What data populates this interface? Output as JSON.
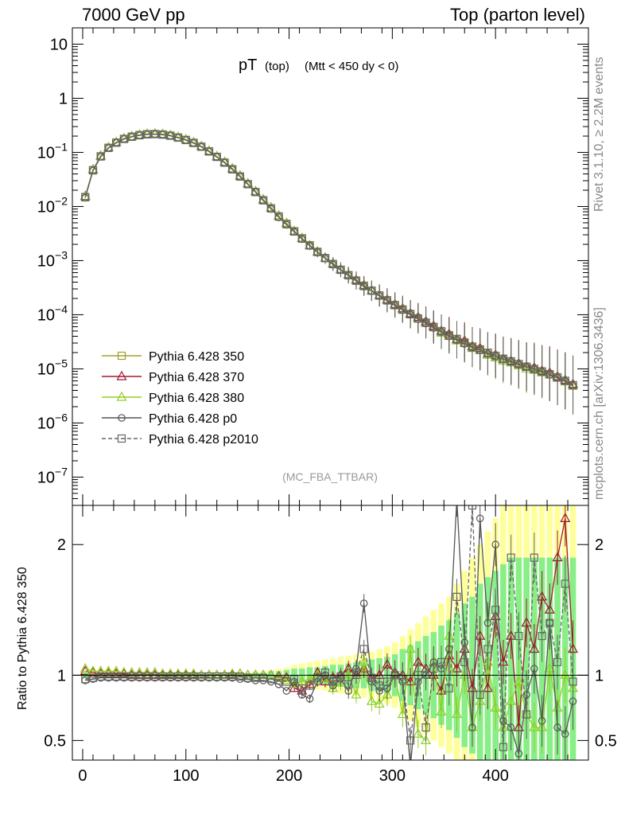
{
  "header": {
    "left": "7000 GeV pp",
    "right": "Top (parton level)"
  },
  "side_labels": {
    "rivet": "Rivet 3.1.10, ≥ 2.2M events",
    "mcplots": "mcplots.cern.ch [arXiv:1306.3436]"
  },
  "plot": {
    "title_main": "pT",
    "title_sub": "(top)",
    "title_cut": "(Mtt < 450 dy < 0)",
    "analysis": "(MC_FBA_TTBAR)",
    "ratio_ylabel": "Ratio to Pythia 6.428 350"
  },
  "chart_data": [
    {
      "type": "line",
      "panel": "main",
      "yscale": "log",
      "ylim": [
        3e-08,
        20
      ],
      "xlim": [
        -10,
        490
      ],
      "yticks": [
        "10",
        "1",
        "10^-1",
        "10^-2",
        "10^-3",
        "10^-4",
        "10^-5",
        "10^-6",
        "10^-7"
      ],
      "legend_position": "bottom-left",
      "x": [
        2.5,
        10,
        17.5,
        25,
        32.5,
        40,
        47.5,
        55,
        62.5,
        70,
        77.5,
        85,
        92.5,
        100,
        107.5,
        115,
        122.5,
        130,
        137.5,
        145,
        152.5,
        160,
        167.5,
        175,
        182.5,
        190,
        197.5,
        205,
        212.5,
        220,
        227.5,
        235,
        242.5,
        250,
        257.5,
        265,
        272.5,
        280,
        287.5,
        295,
        302.5,
        310,
        317.5,
        325,
        332.5,
        340,
        347.5,
        355,
        362.5,
        370,
        377.5,
        385,
        392.5,
        400,
        407.5,
        415,
        422.5,
        430,
        437.5,
        445,
        452.5,
        460,
        467.5,
        475
      ],
      "series": [
        {
          "name": "Pythia 6.428 350",
          "color": "#a0a030",
          "marker": "square",
          "dash": "solid",
          "values": [
            0.015,
            0.047,
            0.085,
            0.122,
            0.152,
            0.178,
            0.196,
            0.209,
            0.217,
            0.219,
            0.215,
            0.205,
            0.189,
            0.171,
            0.151,
            0.128,
            0.105,
            0.083,
            0.065,
            0.049,
            0.036,
            0.026,
            0.0186,
            0.0131,
            0.0093,
            0.0066,
            0.0048,
            0.0035,
            0.0026,
            0.00193,
            0.00146,
            0.00112,
            0.00087,
            0.00068,
            0.00054,
            0.00043,
            0.000345,
            0.00028,
            0.000228,
            0.000186,
            0.000152,
            0.000126,
            0.000104,
            8.6e-05,
            7.2e-05,
            6e-05,
            5e-05,
            4.2e-05,
            3.6e-05,
            3.1e-05,
            2.6e-05,
            2.3e-05,
            2e-05,
            1.75e-05,
            1.55e-05,
            1.38e-05,
            1.23e-05,
            1.1e-05,
            1e-05,
            9e-06,
            8e-06,
            7e-06,
            6e-06,
            5e-06
          ]
        },
        {
          "name": "Pythia 6.428 370",
          "color": "#a01830",
          "marker": "triangle",
          "dash": "solid",
          "values": [
            0.0155,
            0.048,
            0.086,
            0.123,
            0.153,
            0.18,
            0.197,
            0.21,
            0.218,
            0.22,
            0.216,
            0.206,
            0.19,
            0.172,
            0.152,
            0.129,
            0.106,
            0.084,
            0.066,
            0.05,
            0.037,
            0.0265,
            0.019,
            0.0134,
            0.0095,
            0.0067,
            0.0049,
            0.0035,
            0.0026,
            0.0019,
            0.00145,
            0.00112,
            0.00088,
            0.00069,
            0.00055,
            0.00044,
            0.00035,
            0.00028,
            0.00023,
            0.00019,
            0.000155,
            0.00013,
            0.000105,
            9e-05,
            7.5e-05,
            6.2e-05,
            5e-05,
            4.4e-05,
            3.5e-05,
            3.3e-05,
            2.6e-05,
            2.4e-05,
            1.9e-05,
            1.8e-05,
            1.5e-05,
            1.4e-05,
            1.25e-05,
            1.1e-05,
            1.05e-05,
            9.2e-06,
            8.5e-06,
            7.2e-06,
            6.2e-06,
            5.2e-06
          ]
        },
        {
          "name": "Pythia 6.428 380",
          "color": "#8fd020",
          "marker": "triangle",
          "dash": "solid",
          "values": [
            0.0152,
            0.0475,
            0.0855,
            0.1225,
            0.1525,
            0.179,
            0.1965,
            0.2095,
            0.2175,
            0.2195,
            0.2155,
            0.2055,
            0.1895,
            0.1715,
            0.1515,
            0.1285,
            0.1055,
            0.0835,
            0.0655,
            0.0495,
            0.0365,
            0.0262,
            0.0188,
            0.0132,
            0.0094,
            0.00665,
            0.00485,
            0.0035,
            0.0026,
            0.00192,
            0.00146,
            0.00112,
            0.00087,
            0.00068,
            0.00054,
            0.00043,
            0.00034,
            0.00028,
            0.000225,
            0.000185,
            0.00015,
            0.000125,
            0.0001,
            8.5e-05,
            7e-05,
            5.8e-05,
            4.6e-05,
            4e-05,
            3.3e-05,
            3e-05,
            2.4e-05,
            2.2e-05,
            1.8e-05,
            1.6e-05,
            1.4e-05,
            1.3e-05,
            1.15e-05,
            1e-05,
            9.5e-06,
            8.5e-06,
            7.8e-06,
            6.8e-06,
            5.8e-06,
            4.8e-06
          ]
        },
        {
          "name": "Pythia 6.428 p0",
          "color": "#555555",
          "marker": "circle",
          "dash": "solid",
          "values": [
            0.0145,
            0.046,
            0.083,
            0.12,
            0.15,
            0.176,
            0.193,
            0.206,
            0.214,
            0.216,
            0.212,
            0.202,
            0.186,
            0.168,
            0.148,
            0.126,
            0.103,
            0.082,
            0.064,
            0.048,
            0.0355,
            0.0255,
            0.0183,
            0.0128,
            0.009,
            0.0063,
            0.0046,
            0.0034,
            0.0025,
            0.00188,
            0.00143,
            0.0011,
            0.00085,
            0.00067,
            0.00053,
            0.00042,
            0.00033,
            0.000275,
            0.000222,
            0.00018,
            0.000148,
            0.000122,
            0.0001,
            8.3e-05,
            6.9e-05,
            5.7e-05,
            4.8e-05,
            4e-05,
            3.4e-05,
            2.9e-05,
            2.5e-05,
            2.2e-05,
            1.9e-05,
            1.7e-05,
            1.5e-05,
            1.35e-05,
            1.2e-05,
            1.08e-05,
            9.8e-06,
            8.8e-06,
            7.8e-06,
            6.8e-06,
            5.9e-06,
            4.9e-06
          ]
        },
        {
          "name": "Pythia 6.428 p2010",
          "color": "#666666",
          "marker": "square",
          "dash": "dashed",
          "values": [
            0.0148,
            0.0465,
            0.084,
            0.121,
            0.151,
            0.177,
            0.194,
            0.207,
            0.215,
            0.217,
            0.213,
            0.203,
            0.187,
            0.169,
            0.149,
            0.127,
            0.104,
            0.0825,
            0.0645,
            0.0485,
            0.0358,
            0.0258,
            0.0185,
            0.013,
            0.0092,
            0.0065,
            0.0047,
            0.00345,
            0.00255,
            0.0019,
            0.00144,
            0.00111,
            0.00086,
            0.000675,
            0.000535,
            0.000425,
            0.000338,
            0.000278,
            0.000226,
            0.000184,
            0.00015,
            0.000124,
            0.000102,
            8.5e-05,
            7.1e-05,
            5.9e-05,
            4.9e-05,
            4.1e-05,
            3.5e-05,
            3e-05,
            2.5e-05,
            2.25e-05,
            1.95e-05,
            1.72e-05,
            1.52e-05,
            1.37e-05,
            1.22e-05,
            1.09e-05,
            9.9e-06,
            8.9e-06,
            7.9e-06,
            6.9e-06,
            6e-06,
            5e-06
          ]
        }
      ]
    },
    {
      "type": "line",
      "panel": "ratio",
      "ylim": [
        0.35,
        2.3
      ],
      "xlim": [
        -10,
        490
      ],
      "xticks": [
        0,
        100,
        200,
        300,
        400
      ],
      "yticks": [
        0.5,
        1,
        2
      ],
      "reference": 1,
      "x": [
        2.5,
        10,
        17.5,
        25,
        32.5,
        40,
        47.5,
        55,
        62.5,
        70,
        77.5,
        85,
        92.5,
        100,
        107.5,
        115,
        122.5,
        130,
        137.5,
        145,
        152.5,
        160,
        167.5,
        175,
        182.5,
        190,
        197.5,
        205,
        212.5,
        220,
        227.5,
        235,
        242.5,
        250,
        257.5,
        265,
        272.5,
        280,
        287.5,
        295,
        302.5,
        310,
        317.5,
        325,
        332.5,
        340,
        347.5,
        355,
        362.5,
        370,
        377.5,
        385,
        392.5,
        400,
        407.5,
        415,
        422.5,
        430,
        437.5,
        445,
        452.5,
        460,
        467.5,
        475
      ],
      "band_yellow_halfwidth": [
        0.03,
        0.02,
        0.02,
        0.02,
        0.02,
        0.02,
        0.02,
        0.02,
        0.02,
        0.02,
        0.02,
        0.02,
        0.02,
        0.02,
        0.02,
        0.02,
        0.02,
        0.02,
        0.02,
        0.02,
        0.02,
        0.02,
        0.03,
        0.03,
        0.04,
        0.05,
        0.06,
        0.08,
        0.09,
        0.1,
        0.11,
        0.12,
        0.13,
        0.14,
        0.15,
        0.16,
        0.17,
        0.18,
        0.2,
        0.22,
        0.25,
        0.3,
        0.35,
        0.4,
        0.45,
        0.5,
        0.55,
        0.6,
        0.7,
        0.8,
        0.9,
        1.0,
        1.1,
        1.2,
        1.3,
        1.3,
        1.3,
        1.3,
        1.3,
        1.3,
        1.3,
        1.3,
        1.3,
        1.3
      ],
      "band_green_halfwidth": [
        0.02,
        0.01,
        0.01,
        0.01,
        0.01,
        0.01,
        0.01,
        0.01,
        0.01,
        0.01,
        0.01,
        0.01,
        0.01,
        0.01,
        0.01,
        0.01,
        0.01,
        0.01,
        0.01,
        0.01,
        0.01,
        0.015,
        0.02,
        0.02,
        0.03,
        0.03,
        0.04,
        0.05,
        0.05,
        0.06,
        0.06,
        0.07,
        0.08,
        0.08,
        0.09,
        0.1,
        0.1,
        0.12,
        0.13,
        0.14,
        0.16,
        0.2,
        0.23,
        0.26,
        0.3,
        0.33,
        0.38,
        0.42,
        0.48,
        0.55,
        0.6,
        0.7,
        0.75,
        0.8,
        0.85,
        0.9,
        0.9,
        0.9,
        0.9,
        0.9,
        0.9,
        0.9,
        0.9,
        0.9
      ],
      "series": [
        {
          "name": "Pythia 6.428 370",
          "color": "#a01830",
          "marker": "triangle",
          "dash": "solid",
          "values": [
            1.03,
            1.02,
            1.01,
            1.01,
            1.01,
            1.01,
            1.0,
            1.0,
            1.0,
            1.0,
            1.0,
            1.0,
            1.0,
            1.0,
            1.0,
            1.0,
            1.0,
            1.0,
            1.0,
            1.0,
            1.01,
            1.0,
            1.0,
            1.0,
            1.0,
            0.99,
            0.98,
            0.9,
            0.88,
            0.93,
            1.02,
            0.95,
            0.98,
            1.0,
            1.05,
            1.0,
            1.05,
            0.98,
            1.0,
            1.08,
            1.02,
            1.0,
            0.95,
            1.1,
            1.05,
            1.0,
            0.88,
            1.15,
            1.05,
            1.2,
            0.9,
            1.3,
            0.9,
            1.45,
            1.1,
            1.3,
            0.6,
            1.4,
            1.2,
            1.6,
            1.5,
            1.9,
            2.2,
            1.2
          ]
        },
        {
          "name": "Pythia 6.428 380",
          "color": "#8fd020",
          "marker": "triangle",
          "dash": "solid",
          "values": [
            1.05,
            1.03,
            1.03,
            1.03,
            1.03,
            1.02,
            1.02,
            1.02,
            1.02,
            1.02,
            1.01,
            1.01,
            1.01,
            1.01,
            1.01,
            1.0,
            1.0,
            1.0,
            1.0,
            1.01,
            1.01,
            1.0,
            1.0,
            1.0,
            1.0,
            0.98,
            0.96,
            0.93,
            0.95,
            0.97,
            1.0,
            0.98,
            0.9,
            0.94,
            1.0,
            0.85,
            1.1,
            0.8,
            0.78,
            0.85,
            1.0,
            0.7,
            1.2,
            0.55,
            0.5,
            1.1,
            0.72,
            1.3,
            0.7,
            1.0,
            0.6,
            0.8,
            1.1,
            0.75,
            0.6,
            0.8,
            0.95,
            0.7,
            0.6,
            0.6,
            1.05,
            0.75,
            1.0,
            0.9
          ]
        },
        {
          "name": "Pythia 6.428 p0",
          "color": "#555555",
          "marker": "circle",
          "dash": "solid",
          "values": [
            0.96,
            0.97,
            0.98,
            0.98,
            0.98,
            0.98,
            0.98,
            0.98,
            0.98,
            0.98,
            0.98,
            0.98,
            0.98,
            0.98,
            0.98,
            0.98,
            0.98,
            0.98,
            0.98,
            0.98,
            0.97,
            0.97,
            0.96,
            0.96,
            0.95,
            0.93,
            0.88,
            0.95,
            0.85,
            0.82,
            0.95,
            1.0,
            0.92,
            0.97,
            0.88,
            1.05,
            1.55,
            0.95,
            0.88,
            0.9,
            1.0,
            0.95,
            0.3,
            0.95,
            1.0,
            1.1,
            1.05,
            1.2,
            2.35,
            1.25,
            0.6,
            2.2,
            1.4,
            2.0,
            0.65,
            0.6,
            0.4,
            0.85,
            1.05,
            0.65,
            1.4,
            0.6,
            0.55,
            0.8
          ]
        },
        {
          "name": "Pythia 6.428 p2010",
          "color": "#666666",
          "marker": "square",
          "dash": "dashed",
          "values": [
            0.97,
            0.98,
            0.99,
            0.99,
            0.99,
            0.99,
            0.99,
            0.99,
            0.99,
            0.99,
            0.99,
            0.99,
            0.99,
            0.99,
            0.99,
            0.99,
            0.99,
            0.99,
            0.99,
            0.99,
            0.99,
            0.98,
            0.98,
            0.98,
            0.97,
            0.96,
            0.95,
            0.97,
            0.9,
            0.92,
            0.98,
            1.02,
            0.95,
            0.99,
            0.93,
            1.02,
            1.2,
            0.98,
            0.92,
            0.95,
            1.0,
            0.97,
            0.5,
            1.0,
            0.6,
            1.05,
            1.1,
            0.9,
            1.6,
            1.1,
            2.3,
            0.85,
            1.2,
            1.5,
            0.45,
            1.9,
            1.3,
            0.7,
            1.9,
            1.3,
            1.4,
            1.1,
            1.7,
            0.95
          ]
        }
      ]
    }
  ]
}
